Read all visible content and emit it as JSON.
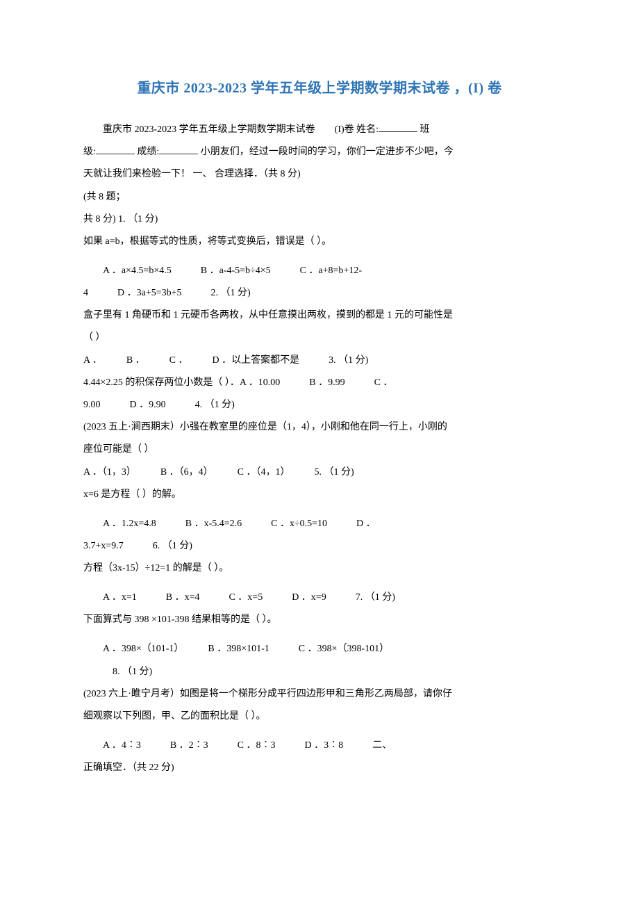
{
  "title": "重庆市 2023-2023 学年五年级上学期数学期末试卷 ，(I) 卷",
  "intro_line1_prefix": "重庆市 2023-2023 学年五年级上学期数学期末试卷　　(I)卷 姓名:",
  "intro_line1_suffix": " 班",
  "intro_line2_prefix": "级:",
  "intro_line2_mid": " 成绩:",
  "intro_line2_suffix": " 小朋友们，经过一段时间的学习，你们一定进步不少吧，今",
  "intro_line3": "天就让我们来检验一下！ 一、 合理选择．（共 8 分)",
  "line_a": "(共 8 题；",
  "line_b": "共 8 分) 1. （1 分)",
  "q1": "如果 a=b，根据等式的性质，将等式变换后，错误是（ ）。",
  "q1_opts_line1": "　　A ．a×4.5=b×4.5　　　B ．a-4-5=b÷4×5　　　C ．a+8=b+12-",
  "q1_opts_line2": "4　　　D ．3a+5=3b+5　　　2. （1 分)",
  "q2": "盒子里有 1 角硬币和 1 元硬币各两枚，从中任意摸出两枚，摸到的都是 1 元的可能性是",
  "q2b": "（ ）",
  "q2_opts": "A ．　　　B ．　　　C ．　　　D ．以上答案都不是　　　3. （1 分)",
  "q3": "4.44×2.25 的积保存两位小数是（ ）．A ．10.00　　　B ．9.99　　　C ．",
  "q3b": "9.00　　　D ．9.90　　　4. （1 分)",
  "q4a": "(2023 五上·涧西期末）小强在教室里的座位是（1，4），小刚和他在同一行上，小刚的",
  "q4b": "座位可能是（ ）",
  "q4_opts": "A ．（1，3）　　　B ．（6，4）　　　C ．（4，1）　　　5. （1 分)",
  "q5": "x=6 是方程（ ）的解。",
  "q5_opts_line1": "　　A ．1.2x=4.8　　　B ．x-5.4=2.6　　　C ．x÷0.5=10　　　D ．",
  "q5_opts_line2": "3.7+x=9.7　　　6. （1 分)",
  "q6": "方程（3x-15）÷12=1 的解是（ ）。",
  "q6_opts": "　　A ．x=1　　　B ．x=4　　　C ．x=5　　　D ．x=9　　　7. （1 分)",
  "q7": "下面算式与 398 ×101-398 结果相等的是（ ）。",
  "q7_opts_line1": "　　A ．398×（101-1）　　　B ．398×101-1　　　C ．398×（398-101）",
  "q7_opts_line2": "　　　8. （1 分)",
  "q8a": "(2023 六上·睢宁月考）如图是将一个梯形分成平行四边形甲和三角形乙两局部，请你仔",
  "q8b": "细观察以下列图，甲、乙的面积比是（ ）。",
  "q8_opts_line1": "　　A ．4∶3　　　B ．2∶3　　　C ．8∶3　　　D ．3∶8　　　二、",
  "q8_opts_line2": "正确填空．（共 22 分)",
  "colors": {
    "title_color": "#2e74b5",
    "text_color": "#000000",
    "background": "#ffffff",
    "underline": "#333333"
  },
  "typography": {
    "title_fontsize": 20,
    "body_fontsize": 14,
    "line_height": 2.3
  }
}
